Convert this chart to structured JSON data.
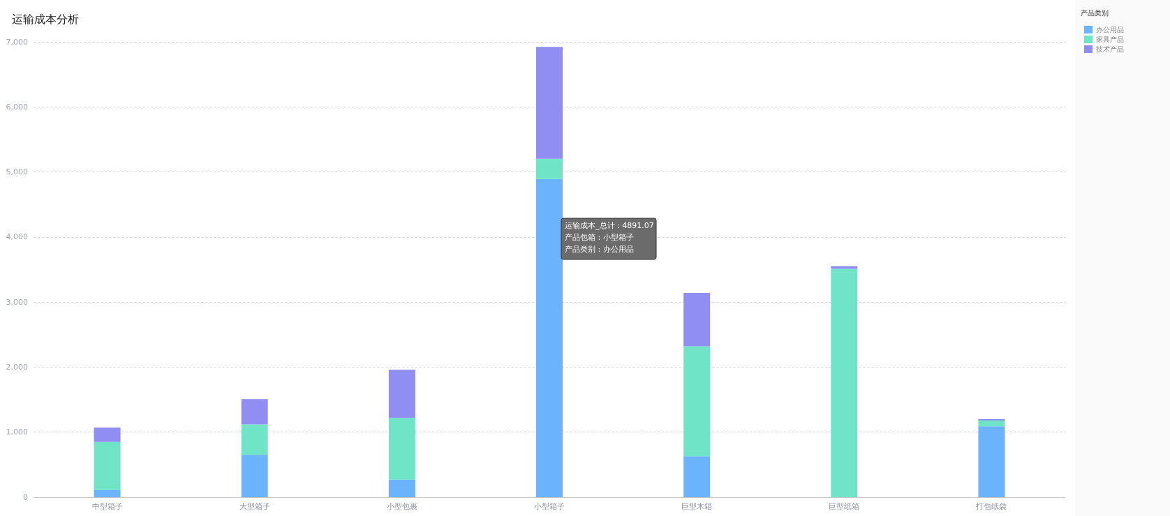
{
  "chart_data": {
    "type": "bar",
    "title": "运输成本分析",
    "legend_title": "产品类别",
    "categories": [
      "中型箱子",
      "大型箱子",
      "小型包裹",
      "小型箱子",
      "巨型木箱",
      "巨型纸箱",
      "打包纸袋"
    ],
    "series": [
      {
        "name": "办公用品",
        "color": "#6cb3fd",
        "values": [
          110,
          650,
          270,
          4891.07,
          630,
          0,
          1090
        ]
      },
      {
        "name": "家具产品",
        "color": "#6fe4c6",
        "values": [
          740,
          470,
          950,
          310,
          1690,
          3510,
          90
        ]
      },
      {
        "name": "技术产品",
        "color": "#918ef3",
        "values": [
          220,
          390,
          740,
          1720,
          820,
          40,
          20
        ]
      }
    ],
    "stacked": true,
    "ylim": [
      0,
      7000
    ],
    "yticks": [
      0,
      {
        "value": 1000,
        "label": "1,000"
      },
      {
        "value": 2000,
        "label": "2,000"
      },
      {
        "value": 3000,
        "label": "3,000"
      },
      {
        "value": 4000,
        "label": "4,000"
      },
      {
        "value": 5000,
        "label": "5,000"
      },
      {
        "value": 6000,
        "label": "6,000"
      },
      {
        "value": 7000,
        "label": "7,000"
      }
    ],
    "grid": "y",
    "legend": "top right",
    "annotations": [
      "运输成本_总计 : 4891.07",
      "产品包箱 : 小型箱子",
      "产品类别 : 办公用品"
    ]
  }
}
